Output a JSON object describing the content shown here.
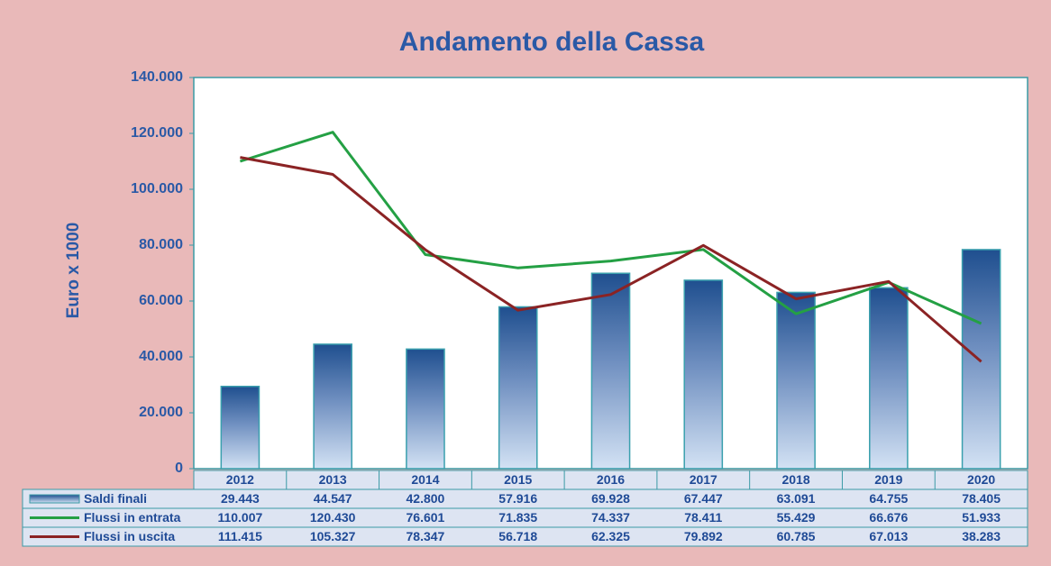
{
  "chart_data": {
    "type": "bar",
    "title": "Andamento della Cassa",
    "y_label": "Euro x 1000",
    "categories": [
      "2012",
      "2013",
      "2014",
      "2015",
      "2016",
      "2017",
      "2018",
      "2019",
      "2020"
    ],
    "series": [
      {
        "name": "Saldi finali",
        "type": "bar",
        "color": "#1f4f8f",
        "values": [
          29443,
          44547,
          42800,
          57916,
          69928,
          67447,
          63091,
          64755,
          78405
        ],
        "value_labels": [
          "29.443",
          "44.547",
          "42.800",
          "57.916",
          "69.928",
          "67.447",
          "63.091",
          "64.755",
          "78.405"
        ]
      },
      {
        "name": "Flussi in entrata",
        "type": "line",
        "color": "#24a044",
        "values": [
          110007,
          120430,
          76601,
          71835,
          74337,
          78411,
          55429,
          66676,
          51933
        ],
        "value_labels": [
          "110.007",
          "120.430",
          "76.601",
          "71.835",
          "74.337",
          "78.411",
          "55.429",
          "66.676",
          "51.933"
        ]
      },
      {
        "name": "Flussi in uscita",
        "type": "line",
        "color": "#8b2324",
        "values": [
          111415,
          105327,
          78347,
          56718,
          62325,
          79892,
          60785,
          67013,
          38283
        ],
        "value_labels": [
          "111.415",
          "105.327",
          "78.347",
          "56.718",
          "62.325",
          "79.892",
          "60.785",
          "67.013",
          "38.283"
        ]
      }
    ],
    "ylim": [
      0,
      140000
    ],
    "yticks": [
      0,
      {
        "value": 20000,
        "label": "20.000"
      },
      {
        "value": 40000,
        "label": "40.000"
      },
      {
        "value": 60000,
        "label": "60.000"
      },
      {
        "value": 80000,
        "label": "80.000"
      },
      {
        "value": 100000,
        "label": "100.000"
      },
      {
        "value": 120000,
        "label": "120.000"
      },
      {
        "value": 140000,
        "label": "140.000"
      }
    ],
    "grid": false
  }
}
